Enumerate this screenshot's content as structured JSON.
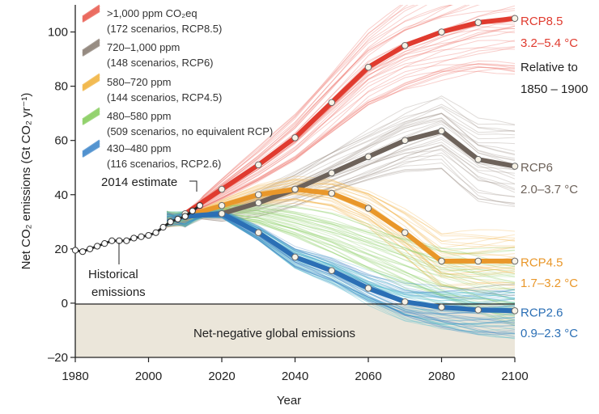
{
  "chart_data": {
    "type": "line",
    "xlabel": "Year",
    "ylabel": "Net CO₂ emissions (Gt CO₂ yr⁻¹)",
    "xlim": [
      1980,
      2100
    ],
    "ylim": [
      -20,
      110
    ],
    "x_ticks": [
      1980,
      2000,
      2020,
      2040,
      2060,
      2080,
      2100
    ],
    "y_ticks": [
      -20,
      0,
      20,
      40,
      60,
      80,
      100
    ],
    "grid": false,
    "legend_position": "top-left",
    "colors": {
      "rcp85": "#e03b2f",
      "rcp6": "#6d625a",
      "rcp45": "#e9972a",
      "nocrp": "#7ac653",
      "rcp26": "#2b6fb5",
      "historical": "#222222",
      "negative_band": "#ebe6da"
    },
    "legend": [
      {
        "line1": ">1,000 ppm CO₂eq",
        "line2": "(172 scenarios, RCP8.5)",
        "color": "#e8594e"
      },
      {
        "line1": "720–1,000 ppm",
        "line2": "(148 scenarios, RCP6)",
        "color": "#8a7d73"
      },
      {
        "line1": "580–720 ppm",
        "line2": "(144 scenarios, RCP4.5)",
        "color": "#f0b23c"
      },
      {
        "line1": "480–580 ppm",
        "line2": "(509 scenarios, no equivalent RCP)",
        "color": "#86cc5c"
      },
      {
        "line1": "430–480 ppm",
        "line2": "(116 scenarios, RCP2.6)",
        "color": "#3d86c9"
      }
    ],
    "historical": {
      "x": [
        1980,
        1982,
        1984,
        1986,
        1988,
        1990,
        1992,
        1994,
        1996,
        1998,
        2000,
        2002,
        2004,
        2006,
        2008,
        2010,
        2012,
        2014
      ],
      "y": [
        19.5,
        19,
        20,
        21,
        22,
        23,
        23,
        23,
        24,
        24.5,
        25,
        26,
        28,
        30,
        31,
        32,
        34,
        36
      ]
    },
    "series": [
      {
        "key": "rcp85",
        "x": [
          2010,
          2020,
          2030,
          2040,
          2050,
          2060,
          2070,
          2080,
          2090,
          2100
        ],
        "y": [
          33,
          42,
          51,
          61,
          74,
          87,
          95,
          100,
          103.5,
          105
        ]
      },
      {
        "key": "rcp6",
        "x": [
          2010,
          2020,
          2030,
          2040,
          2050,
          2060,
          2070,
          2080,
          2090,
          2100
        ],
        "y": [
          32,
          33,
          37,
          42,
          48,
          54,
          60,
          63.5,
          53,
          50.5
        ]
      },
      {
        "key": "rcp45",
        "x": [
          2010,
          2020,
          2030,
          2040,
          2050,
          2060,
          2070,
          2080,
          2090,
          2100
        ],
        "y": [
          32,
          36,
          40,
          42,
          40.5,
          35,
          26,
          15.5,
          15.5,
          15.5
        ]
      },
      {
        "key": "rcp26",
        "x": [
          2010,
          2020,
          2030,
          2040,
          2050,
          2060,
          2070,
          2080,
          2090,
          2100
        ],
        "y": [
          32,
          33,
          26,
          17,
          12,
          5.5,
          0.5,
          -1.5,
          -2.5,
          -2.8
        ]
      }
    ],
    "right_labels": [
      {
        "text": "RCP8.5",
        "color": "#e03b2f",
        "y": 104
      },
      {
        "text": "3.2–5.4 °C",
        "color": "#e03b2f",
        "y": 96
      },
      {
        "text": "Relative to",
        "color": "#222222",
        "y": 87
      },
      {
        "text": "1850 – 1900",
        "color": "#222222",
        "y": 79
      },
      {
        "text": "RCP6",
        "color": "#6d625a",
        "y": 50
      },
      {
        "text": "2.0–3.7 °C",
        "color": "#6d625a",
        "y": 42
      },
      {
        "text": "RCP4.5",
        "color": "#e9972a",
        "y": 15
      },
      {
        "text": "1.7–3.2 °C",
        "color": "#e9972a",
        "y": 7.5
      },
      {
        "text": "RCP2.6",
        "color": "#2b6fb5",
        "y": -3.5
      },
      {
        "text": "0.9–2.3 °C",
        "color": "#2b6fb5",
        "y": -11
      }
    ],
    "annotations": {
      "estimate": "2014 estimate",
      "historical_line1": "Historical",
      "historical_line2": "emissions",
      "net_negative": "Net-negative global emissions"
    }
  }
}
